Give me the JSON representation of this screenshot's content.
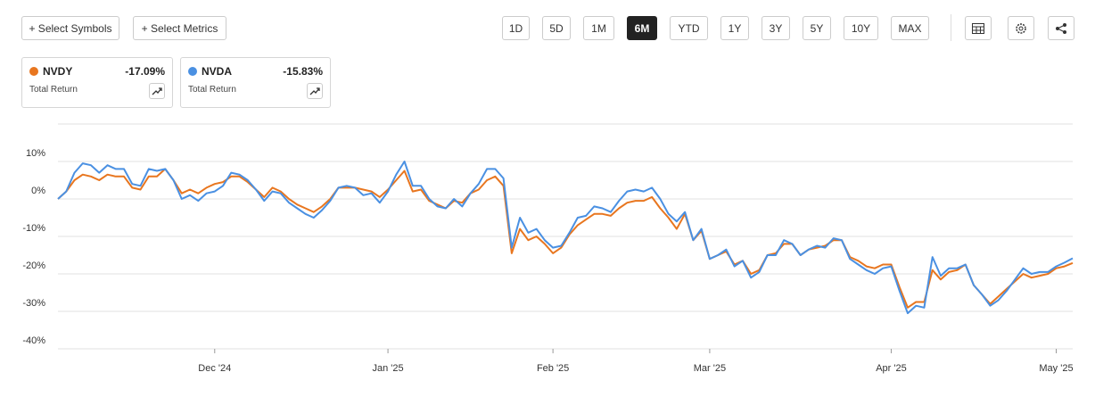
{
  "toolbar": {
    "buttons": [
      "+ Select Symbols",
      "+ Select Metrics"
    ],
    "ranges": [
      {
        "label": "1D"
      },
      {
        "label": "5D"
      },
      {
        "label": "1M"
      },
      {
        "label": "6M",
        "selected": true
      },
      {
        "label": "YTD"
      },
      {
        "label": "1Y"
      },
      {
        "label": "3Y"
      },
      {
        "label": "5Y"
      },
      {
        "label": "10Y"
      },
      {
        "label": "MAX"
      }
    ]
  },
  "chart_data": {
    "type": "line",
    "categories": [
      null,
      null,
      null,
      null,
      null,
      null,
      null,
      null,
      null,
      null,
      null,
      null,
      null,
      null,
      null,
      null,
      null,
      null,
      null,
      "Dec '24",
      null,
      null,
      null,
      null,
      null,
      null,
      null,
      null,
      null,
      null,
      null,
      null,
      null,
      null,
      null,
      null,
      null,
      null,
      null,
      null,
      "Jan '25",
      null,
      null,
      null,
      null,
      null,
      null,
      null,
      null,
      null,
      null,
      null,
      null,
      null,
      null,
      null,
      null,
      null,
      null,
      null,
      "Feb '25",
      null,
      null,
      null,
      null,
      null,
      null,
      null,
      null,
      null,
      null,
      null,
      null,
      null,
      null,
      null,
      null,
      null,
      null,
      "Mar '25",
      null,
      null,
      null,
      null,
      null,
      null,
      null,
      null,
      null,
      null,
      null,
      null,
      null,
      null,
      null,
      null,
      null,
      null,
      null,
      null,
      null,
      "Apr '25",
      null,
      null,
      null,
      null,
      null,
      null,
      null,
      null,
      null,
      null,
      null,
      null,
      null,
      null,
      null,
      null,
      null,
      null,
      null,
      "May '25",
      null,
      null
    ],
    "series": [
      {
        "name": "NVDY",
        "color": "#e8761f",
        "total_return_label": "-17.09%",
        "total_return_title": "Total Return",
        "values": [
          0,
          2,
          5,
          6.5,
          6,
          5,
          6.5,
          6,
          6,
          3,
          2.5,
          6,
          6,
          8,
          5,
          1.5,
          2.5,
          1.5,
          3,
          4,
          4.5,
          6,
          6,
          4.5,
          2.5,
          0.5,
          3,
          2,
          0,
          -1.5,
          -2.5,
          -3.5,
          -2,
          0,
          3,
          3,
          3,
          2.5,
          2,
          0.5,
          2.5,
          5,
          7.5,
          2,
          2.5,
          -0.5,
          -1.5,
          -2.5,
          -0.5,
          -1,
          1.5,
          2.5,
          5,
          6,
          3.5,
          -14.5,
          -8,
          -11,
          -10,
          -12,
          -14.5,
          -13,
          -9.5,
          -7,
          -5.5,
          -4,
          -4,
          -4.5,
          -2.5,
          -1,
          -0.5,
          -0.5,
          0.5,
          -2.5,
          -5,
          -8,
          -4,
          -11,
          -8.5,
          -16,
          -15,
          -14,
          -17.5,
          -16.5,
          -20,
          -19,
          -15,
          -14.5,
          -12,
          -12,
          -15,
          -13.5,
          -13,
          -12.5,
          -11,
          -11,
          -15.5,
          -16.5,
          -18,
          -18.5,
          -17.5,
          -17.5,
          -23.5,
          -29,
          -27.5,
          -27.5,
          -19,
          -21.5,
          -19.5,
          -19,
          -17.5,
          -23,
          -25.5,
          -28,
          -26,
          -24,
          -22,
          -20,
          -21,
          -20.5,
          -20,
          -18.5,
          -18,
          -17.09
        ]
      },
      {
        "name": "NVDA",
        "color": "#4a90e2",
        "total_return_label": "-15.83%",
        "total_return_title": "Total Return",
        "values": [
          0,
          2,
          7,
          9.5,
          9,
          7,
          9,
          8,
          8,
          4,
          3.5,
          8,
          7.5,
          8,
          5,
          0,
          1,
          -0.5,
          1.5,
          2,
          3.5,
          7,
          6.5,
          5,
          2.5,
          -0.5,
          2,
          1.5,
          -1,
          -2.5,
          -4,
          -5,
          -3,
          -0.5,
          3,
          3.5,
          3,
          1,
          1.5,
          -1,
          2,
          6.5,
          10,
          3.5,
          3.5,
          0,
          -2,
          -2.5,
          0,
          -2,
          1.5,
          4,
          8,
          8,
          5.5,
          -13,
          -5,
          -9,
          -8,
          -11,
          -13,
          -12.5,
          -9,
          -5,
          -4.5,
          -2,
          -2.5,
          -3.5,
          -0.5,
          2,
          2.5,
          2,
          3,
          0,
          -4,
          -6,
          -3.5,
          -11,
          -8,
          -16,
          -15,
          -13.5,
          -18,
          -16.5,
          -21,
          -19.5,
          -15,
          -15,
          -11,
          -12,
          -15,
          -13.5,
          -12.5,
          -13,
          -10.5,
          -11,
          -16,
          -17.5,
          -19,
          -20,
          -18.5,
          -18,
          -24.5,
          -30.5,
          -28.5,
          -29,
          -15.5,
          -20.5,
          -18.5,
          -18.5,
          -17.5,
          -23,
          -25.5,
          -28.5,
          -27,
          -24.5,
          -21.5,
          -18.5,
          -20,
          -19.5,
          -19.5,
          -18,
          -17,
          -15.83
        ]
      }
    ],
    "ylim": [
      -40,
      20
    ],
    "yticks": [
      {
        "value": -40,
        "label": "-40%"
      },
      {
        "value": -30,
        "label": "-30%"
      },
      {
        "value": -20,
        "label": "-20%"
      },
      {
        "value": -10,
        "label": "-10%"
      },
      {
        "value": 0,
        "label": "0%"
      },
      {
        "value": 10,
        "label": "10%"
      },
      {
        "value": 20,
        "label": ""
      }
    ],
    "grid": true
  }
}
